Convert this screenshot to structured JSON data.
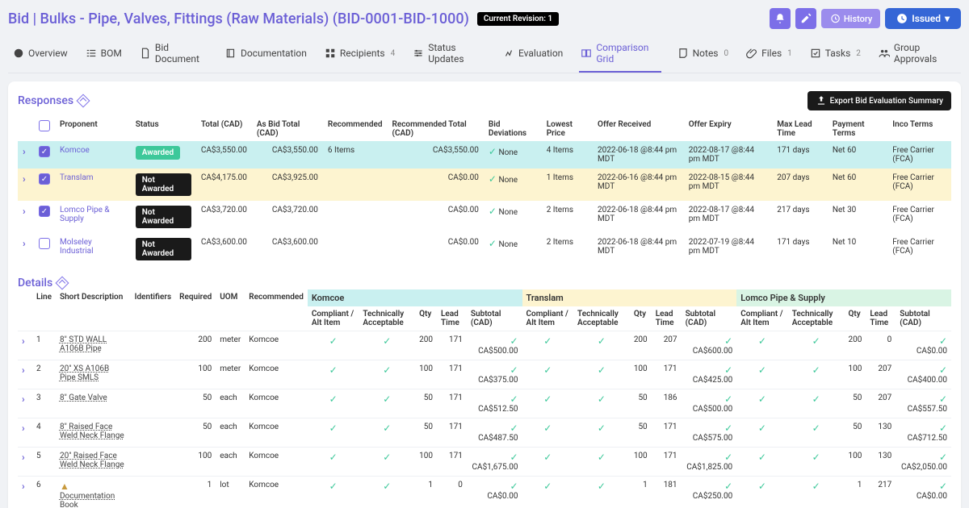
{
  "header": {
    "title": "Bid | Bulks - Pipe, Valves, Fittings (Raw Materials) (BID-0001-BID-1000)",
    "revision": "Current Revision: 1",
    "history_label": "History",
    "issued_label": "Issued"
  },
  "tabs": [
    {
      "label": "Overview",
      "icon": "info"
    },
    {
      "label": "BOM",
      "icon": "list"
    },
    {
      "label": "Bid Document",
      "icon": "doc"
    },
    {
      "label": "Documentation",
      "icon": "book"
    },
    {
      "label": "Recipients",
      "icon": "grid",
      "count": "4"
    },
    {
      "label": "Status Updates",
      "icon": "slider"
    },
    {
      "label": "Evaluation",
      "icon": "eval"
    },
    {
      "label": "Comparison Grid",
      "icon": "compare",
      "active": true
    },
    {
      "label": "Notes",
      "icon": "note",
      "count": "0"
    },
    {
      "label": "Files",
      "icon": "clip",
      "count": "1"
    },
    {
      "label": "Tasks",
      "icon": "task",
      "count": "2"
    },
    {
      "label": "Group Approvals",
      "icon": "group"
    }
  ],
  "responses": {
    "title": "Responses",
    "export_label": "Export Bid Evaluation Summary",
    "cols": [
      "",
      "",
      "Proponent",
      "Status",
      "Total (CAD)",
      "As Bid Total (CAD)",
      "Recommended",
      "Recommended Total (CAD)",
      "Bid Deviations",
      "Lowest Price",
      "Offer Received",
      "Offer Expiry",
      "Max Lead Time",
      "Payment Terms",
      "Inco Terms"
    ],
    "rows": [
      {
        "checked": true,
        "rowclass": "row-awarded",
        "proponent": "Komcoe",
        "status": "Awarded",
        "status_class": "awarded",
        "total": "CA$3,550.00",
        "asbid": "CA$3,550.00",
        "recommended": "6 Items",
        "rectotal": "CA$3,550.00",
        "dev": "None",
        "lowest": "4 Items",
        "received": "2022-06-18 @8:44 pm MDT",
        "expiry": "2022-08-17 @8:44 pm MDT",
        "lead": "171 days",
        "terms": "Net 60",
        "inco": "Free Carrier (FCA)"
      },
      {
        "checked": true,
        "rowclass": "row-yellow",
        "proponent": "Translam",
        "status": "Not Awarded",
        "status_class": "notawarded",
        "total": "CA$4,175.00",
        "asbid": "CA$3,925.00",
        "recommended": "",
        "rectotal": "CA$0.00",
        "dev": "None",
        "lowest": "1 Items",
        "received": "2022-06-16 @8:44 pm MDT",
        "expiry": "2022-08-15 @8:44 pm MDT",
        "lead": "207 days",
        "terms": "Net 60",
        "inco": "Free Carrier (FCA)"
      },
      {
        "checked": true,
        "rowclass": "",
        "proponent": "Lomco Pipe & Supply",
        "status": "Not Awarded",
        "status_class": "notawarded",
        "total": "CA$3,720.00",
        "asbid": "CA$3,720.00",
        "recommended": "",
        "rectotal": "CA$0.00",
        "dev": "None",
        "lowest": "2 Items",
        "received": "2022-06-18 @8:44 pm MDT",
        "expiry": "2022-08-17 @8:44 pm MDT",
        "lead": "217 days",
        "terms": "Net 30",
        "inco": "Free Carrier (FCA)"
      },
      {
        "checked": false,
        "rowclass": "",
        "proponent": "Molseley Industrial",
        "status": "Not Awarded",
        "status_class": "notawarded",
        "total": "CA$3,600.00",
        "asbid": "CA$3,600.00",
        "recommended": "",
        "rectotal": "CA$0.00",
        "dev": "None",
        "lowest": "2 Items",
        "received": "2022-06-18 @8:44 pm MDT",
        "expiry": "2022-07-19 @8:44 pm MDT",
        "lead": "171 days",
        "terms": "Net 10",
        "inco": "Free Carrier (FCA)"
      }
    ]
  },
  "details": {
    "title": "Details",
    "cols_left": [
      "Line",
      "Short Description",
      "Identifiers",
      "Required",
      "UOM",
      "Recommended"
    ],
    "vendors": [
      "Komcoe",
      "Translam",
      "Lomco Pipe & Supply"
    ],
    "sub_cols": [
      "Compliant / Alt Item",
      "Technically Acceptable",
      "Qty",
      "Lead Time",
      "Subtotal (CAD)"
    ],
    "rows": [
      {
        "line": "1",
        "desc": "8\" STD WALL A106B Pipe",
        "req": "200",
        "uom": "meter",
        "rec": "Komcoe",
        "k": {
          "qty": "200",
          "lead": "171",
          "sub": "CA$500.00"
        },
        "t": {
          "qty": "200",
          "lead": "207",
          "sub": "CA$600.00"
        },
        "l": {
          "qty": "200",
          "lead": "0",
          "sub": "CA$0.00"
        }
      },
      {
        "line": "2",
        "desc": "20\" XS A106B Pipe SMLS",
        "req": "100",
        "uom": "meter",
        "rec": "Komcoe",
        "k": {
          "qty": "100",
          "lead": "171",
          "sub": "CA$375.00"
        },
        "t": {
          "qty": "100",
          "lead": "171",
          "sub": "CA$425.00"
        },
        "l": {
          "qty": "100",
          "lead": "207",
          "sub": "CA$400.00"
        }
      },
      {
        "line": "3",
        "desc": "8\" Gate Valve",
        "req": "50",
        "uom": "each",
        "rec": "Komcoe",
        "k": {
          "qty": "50",
          "lead": "171",
          "sub": "CA$512.50"
        },
        "t": {
          "qty": "50",
          "lead": "186",
          "sub": "CA$500.00"
        },
        "l": {
          "qty": "50",
          "lead": "207",
          "sub": "CA$557.50"
        }
      },
      {
        "line": "4",
        "desc": "8\" Raised Face Weld Neck Flange",
        "req": "50",
        "uom": "each",
        "rec": "Komcoe",
        "k": {
          "qty": "50",
          "lead": "171",
          "sub": "CA$487.50"
        },
        "t": {
          "qty": "50",
          "lead": "171",
          "sub": "CA$575.00"
        },
        "l": {
          "qty": "50",
          "lead": "130",
          "sub": "CA$712.50"
        }
      },
      {
        "line": "5",
        "desc": "20\" Raised Face Weld Neck Flange",
        "req": "100",
        "uom": "each",
        "rec": "Komcoe",
        "k": {
          "qty": "100",
          "lead": "171",
          "sub": "CA$1,675.00"
        },
        "t": {
          "qty": "100",
          "lead": "171",
          "sub": "CA$1,825.00"
        },
        "l": {
          "qty": "100",
          "lead": "130",
          "sub": "CA$2,050.00"
        }
      },
      {
        "line": "6",
        "desc": "Documentation Book",
        "warn": true,
        "req": "1",
        "uom": "lot",
        "rec": "Komcoe",
        "k": {
          "qty": "1",
          "lead": "0",
          "sub": "CA$0.00"
        },
        "t": {
          "qty": "1",
          "lead": "181",
          "sub": "CA$250.00"
        },
        "l": {
          "qty": "1",
          "lead": "217",
          "sub": "CA$0.00"
        }
      }
    ]
  },
  "colors": {
    "accent": "#6b5fd6",
    "awarded_row": "#c9f0f0",
    "yellow_row": "#fdf4d0",
    "green_check": "#3dc89a"
  }
}
